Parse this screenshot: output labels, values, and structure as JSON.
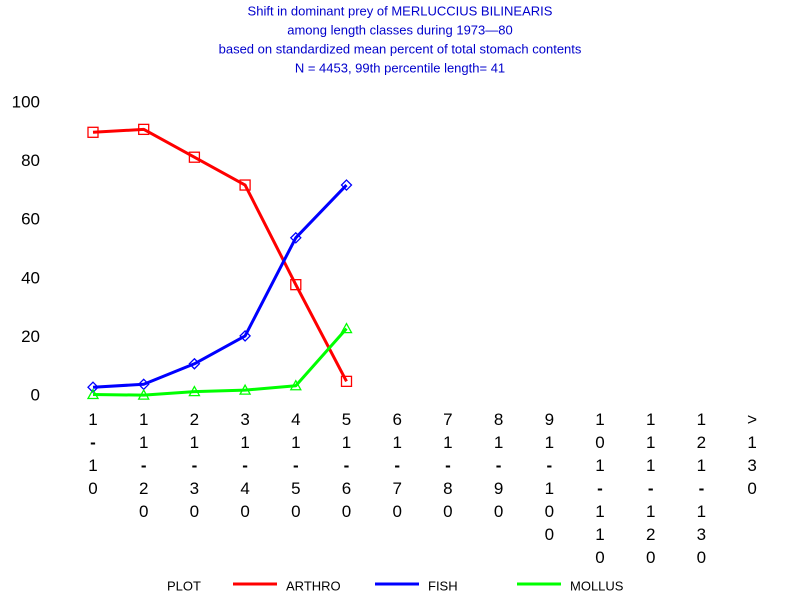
{
  "chart_data": {
    "type": "line",
    "title": [
      "Shift in dominant prey of MERLUCCIUS BILINEARIS",
      "among length classes during 1973—80",
      "based on standardized mean percent of  total stomach contents",
      "N =  4453, 99th percentile  length= 41"
    ],
    "categories": [
      "1-10",
      "11-20",
      "21-30",
      "31-40",
      "41-50",
      "51-60",
      "61-70",
      "71-80",
      "81-90",
      "91-100",
      "101-110",
      "111-120",
      "121-130",
      ">130"
    ],
    "series": [
      {
        "name": "ARTHRO",
        "color": "#ff0000",
        "marker": "square",
        "values": [
          90,
          91,
          81.5,
          72,
          38,
          5,
          null,
          null,
          null,
          null,
          null,
          null,
          null,
          null
        ]
      },
      {
        "name": "FISH",
        "color": "#0000ff",
        "marker": "diamond",
        "values": [
          3,
          4,
          11,
          20.5,
          54,
          72,
          null,
          null,
          null,
          null,
          null,
          null,
          null,
          null
        ]
      },
      {
        "name": "MOLLUS",
        "color": "#00ff00",
        "marker": "triangle",
        "values": [
          0.5,
          0.3,
          1.5,
          2,
          3.5,
          23,
          null,
          null,
          null,
          null,
          null,
          null,
          null,
          null
        ]
      }
    ],
    "legend_title": "PLOT",
    "ylim": [
      0,
      100
    ],
    "yticks": [
      0,
      20,
      40,
      60,
      80,
      100
    ],
    "grid": false
  }
}
